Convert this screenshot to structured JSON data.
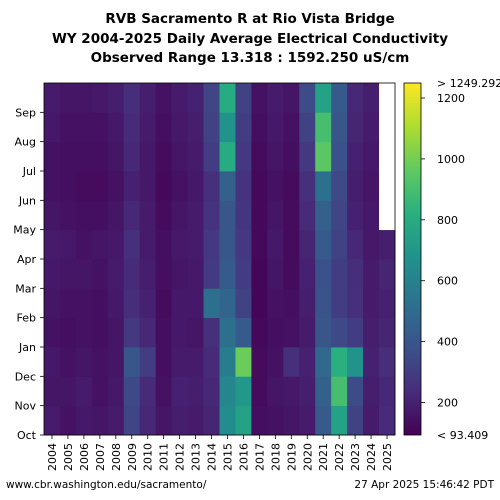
{
  "chart_data": {
    "type": "heatmap",
    "title_lines": [
      "RVB Sacramento R at Rio Vista Bridge",
      "WY 2004-2025 Daily Average Electrical Conductivity",
      "Observed Range 13.318 : 1592.250 uS/cm"
    ],
    "x_categories": [
      "2004",
      "2005",
      "2006",
      "2007",
      "2008",
      "2009",
      "2010",
      "2011",
      "2012",
      "2013",
      "2014",
      "2015",
      "2016",
      "2017",
      "2018",
      "2019",
      "2020",
      "2021",
      "2022",
      "2023",
      "2024",
      "2025"
    ],
    "y_categories": [
      "Oct",
      "Nov",
      "Dec",
      "Jan",
      "Feb",
      "Mar",
      "Apr",
      "May",
      "Jun",
      "Jul",
      "Aug",
      "Sep"
    ],
    "colorbar": {
      "colormap": "viridis",
      "min": 93.409,
      "max": 1249.292,
      "min_label": "< 93.409",
      "max_label": "> 1249.292",
      "ticks": [
        "200",
        "400",
        "600",
        "800",
        "1000",
        "1200"
      ],
      "tick_values": [
        200,
        400,
        600,
        800,
        1000,
        1200
      ]
    },
    "monthly_average_ec": [
      [
        180,
        160,
        170,
        150,
        160,
        170,
        180,
        160,
        150,
        150,
        170,
        180
      ],
      [
        150,
        160,
        150,
        140,
        150,
        160,
        170,
        150,
        140,
        140,
        150,
        160
      ],
      [
        170,
        180,
        160,
        150,
        150,
        160,
        150,
        140,
        130,
        140,
        150,
        160
      ],
      [
        160,
        150,
        150,
        140,
        140,
        150,
        160,
        140,
        130,
        140,
        150,
        170
      ],
      [
        180,
        170,
        160,
        160,
        170,
        180,
        170,
        160,
        150,
        160,
        170,
        190
      ],
      [
        330,
        350,
        400,
        280,
        240,
        230,
        250,
        220,
        200,
        220,
        230,
        240
      ],
      [
        220,
        230,
        300,
        220,
        200,
        190,
        180,
        180,
        170,
        170,
        180,
        190
      ],
      [
        160,
        150,
        140,
        140,
        130,
        140,
        140,
        130,
        120,
        130,
        140,
        150
      ],
      [
        190,
        200,
        180,
        170,
        170,
        160,
        170,
        160,
        150,
        160,
        170,
        180
      ],
      [
        180,
        190,
        180,
        160,
        170,
        170,
        180,
        180,
        170,
        180,
        190,
        200
      ],
      [
        210,
        220,
        230,
        250,
        520,
        290,
        280,
        260,
        250,
        300,
        320,
        330
      ],
      [
        650,
        620,
        580,
        520,
        470,
        420,
        400,
        400,
        450,
        800,
        680,
        800
      ],
      [
        750,
        700,
        980,
        420,
        320,
        300,
        280,
        270,
        260,
        280,
        300,
        320
      ],
      [
        140,
        130,
        130,
        120,
        110,
        110,
        120,
        120,
        120,
        130,
        140,
        150
      ],
      [
        150,
        160,
        150,
        140,
        150,
        160,
        170,
        160,
        150,
        160,
        170,
        180
      ],
      [
        160,
        170,
        250,
        150,
        140,
        130,
        130,
        130,
        130,
        140,
        150,
        160
      ],
      [
        180,
        190,
        200,
        180,
        190,
        200,
        210,
        230,
        250,
        280,
        320,
        360
      ],
      [
        420,
        450,
        480,
        400,
        390,
        380,
        420,
        450,
        520,
        950,
        900,
        750
      ],
      [
        750,
        900,
        820,
        350,
        300,
        300,
        320,
        330,
        350,
        380,
        400,
        420
      ],
      [
        320,
        360,
        680,
        300,
        250,
        240,
        220,
        200,
        190,
        200,
        210,
        220
      ],
      [
        180,
        190,
        200,
        190,
        180,
        180,
        170,
        170,
        160,
        170,
        180,
        190
      ],
      [
        230,
        220,
        240,
        210,
        200,
        210,
        190,
        null,
        null,
        null,
        null,
        null
      ]
    ]
  },
  "footer": {
    "url": "www.cbr.washington.edu/sacramento/",
    "timestamp": "27 Apr 2025 15:46:42 PDT"
  }
}
